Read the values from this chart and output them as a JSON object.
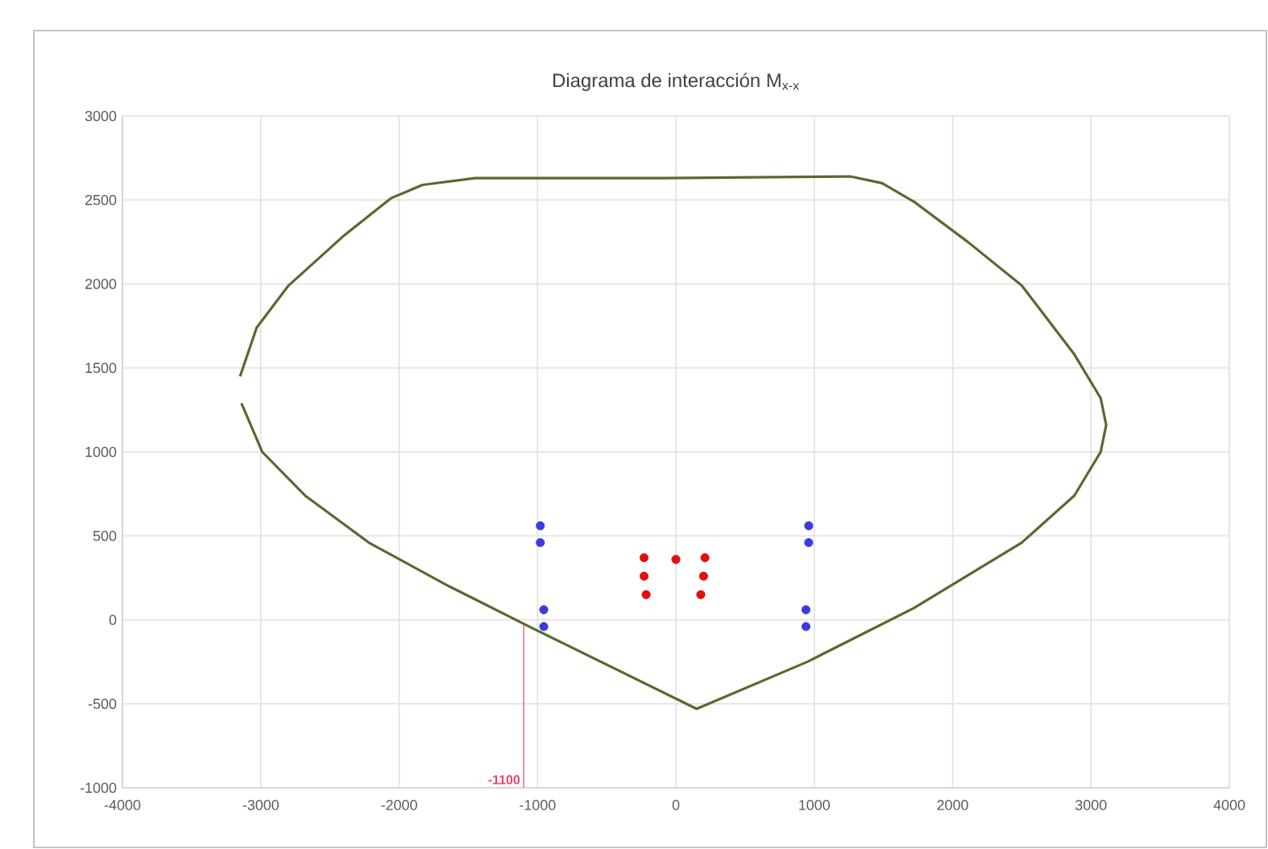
{
  "chart_data": {
    "type": "scatter",
    "title": "Diagrama de interacción M$_{x-x}$",
    "xlim": [
      -4000,
      4000
    ],
    "ylim": [
      -1000,
      3000
    ],
    "xticks": [
      -4000,
      -3000,
      -2000,
      -1000,
      0,
      1000,
      2000,
      3000,
      4000
    ],
    "yticks": [
      -1000,
      -500,
      0,
      500,
      1000,
      1500,
      2000,
      2500,
      3000
    ],
    "grid": true,
    "marker": "circle",
    "series": [
      {
        "type": "line",
        "marker": "none",
        "color": "#556b2f",
        "x": [
          -3150,
          -3030,
          -2800,
          -2410,
          -2060,
          -1830,
          -1450,
          -90,
          1260,
          1490,
          1720,
          2110,
          2500,
          2880,
          3070,
          3110,
          3070,
          2880,
          2500,
          1720,
          950,
          150,
          -1060,
          -1640,
          -2220,
          -2680,
          -2990,
          -3140
        ],
        "values": [
          1450,
          1740,
          1990,
          2280,
          2510,
          2590,
          2630,
          2630,
          2640,
          2600,
          2490,
          2250,
          1990,
          1580,
          1320,
          1160,
          1000,
          740,
          460,
          70,
          -250,
          -530,
          -40,
          200,
          460,
          740,
          1000,
          1290
        ]
      },
      {
        "color": "#3b3bdc",
        "x": [
          -980,
          -980,
          -955,
          -955,
          960,
          960,
          940,
          940
        ],
        "values": [
          560,
          460,
          60,
          -40,
          560,
          460,
          60,
          -40
        ]
      },
      {
        "color": "#e01010",
        "x": [
          -230,
          -230,
          -215,
          0,
          210,
          200,
          180
        ],
        "values": [
          370,
          260,
          150,
          360,
          370,
          260,
          150
        ]
      }
    ],
    "ref_lines": [
      {
        "axis": "x",
        "value": -1100,
        "label": "-1100",
        "color": "#e8436b"
      }
    ]
  }
}
